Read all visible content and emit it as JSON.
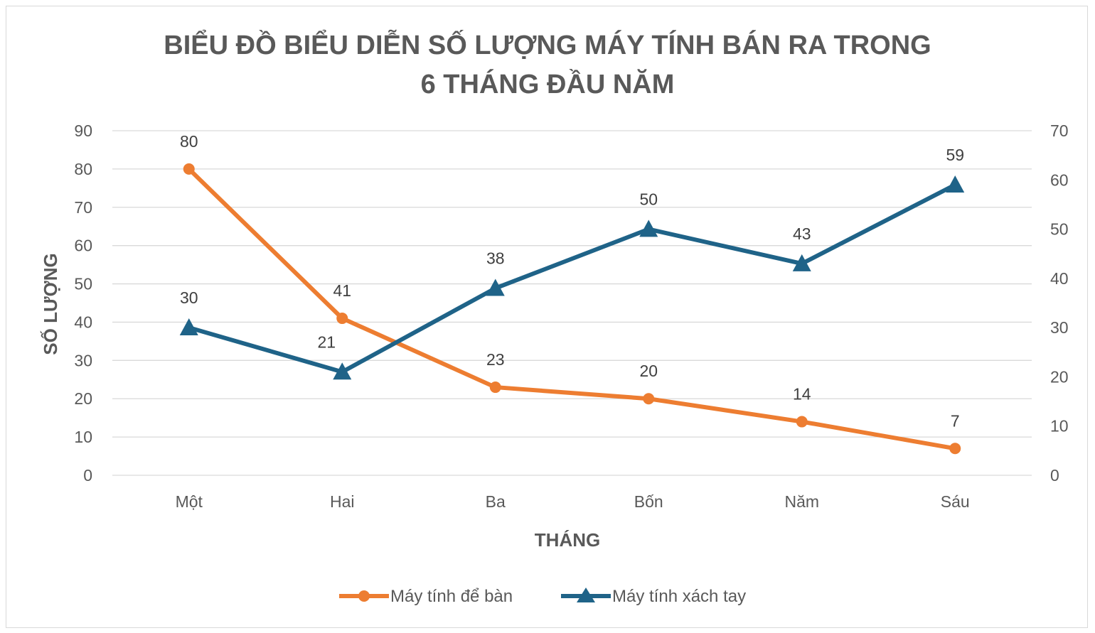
{
  "chart_data": {
    "type": "line",
    "title_lines": [
      "BIỂU ĐỒ BIỂU DIỄN SỐ LƯỢNG MÁY TÍNH BÁN RA TRONG",
      "6 THÁNG ĐẦU NĂM"
    ],
    "xlabel": "THÁNG",
    "ylabel": "SỐ LƯỢNG",
    "categories": [
      "Một",
      "Hai",
      "Ba",
      "Bốn",
      "Năm",
      "Sáu"
    ],
    "ylim": [
      0,
      90
    ],
    "yticks": [
      0,
      10,
      20,
      30,
      40,
      50,
      60,
      70,
      80,
      90
    ],
    "y2lim": [
      0,
      70
    ],
    "y2ticks": [
      0,
      10,
      20,
      30,
      40,
      50,
      60,
      70
    ],
    "grid": true,
    "legend_position": "bottom",
    "series": [
      {
        "name": "Máy tính để bàn",
        "axis": "primary",
        "marker": "circle",
        "color": "#ED7D31",
        "values": [
          80,
          41,
          23,
          20,
          14,
          7
        ]
      },
      {
        "name": "Máy tính xách tay",
        "axis": "secondary",
        "marker": "triangle",
        "color": "#1F6388",
        "values": [
          30,
          21,
          38,
          50,
          43,
          59
        ]
      }
    ]
  }
}
